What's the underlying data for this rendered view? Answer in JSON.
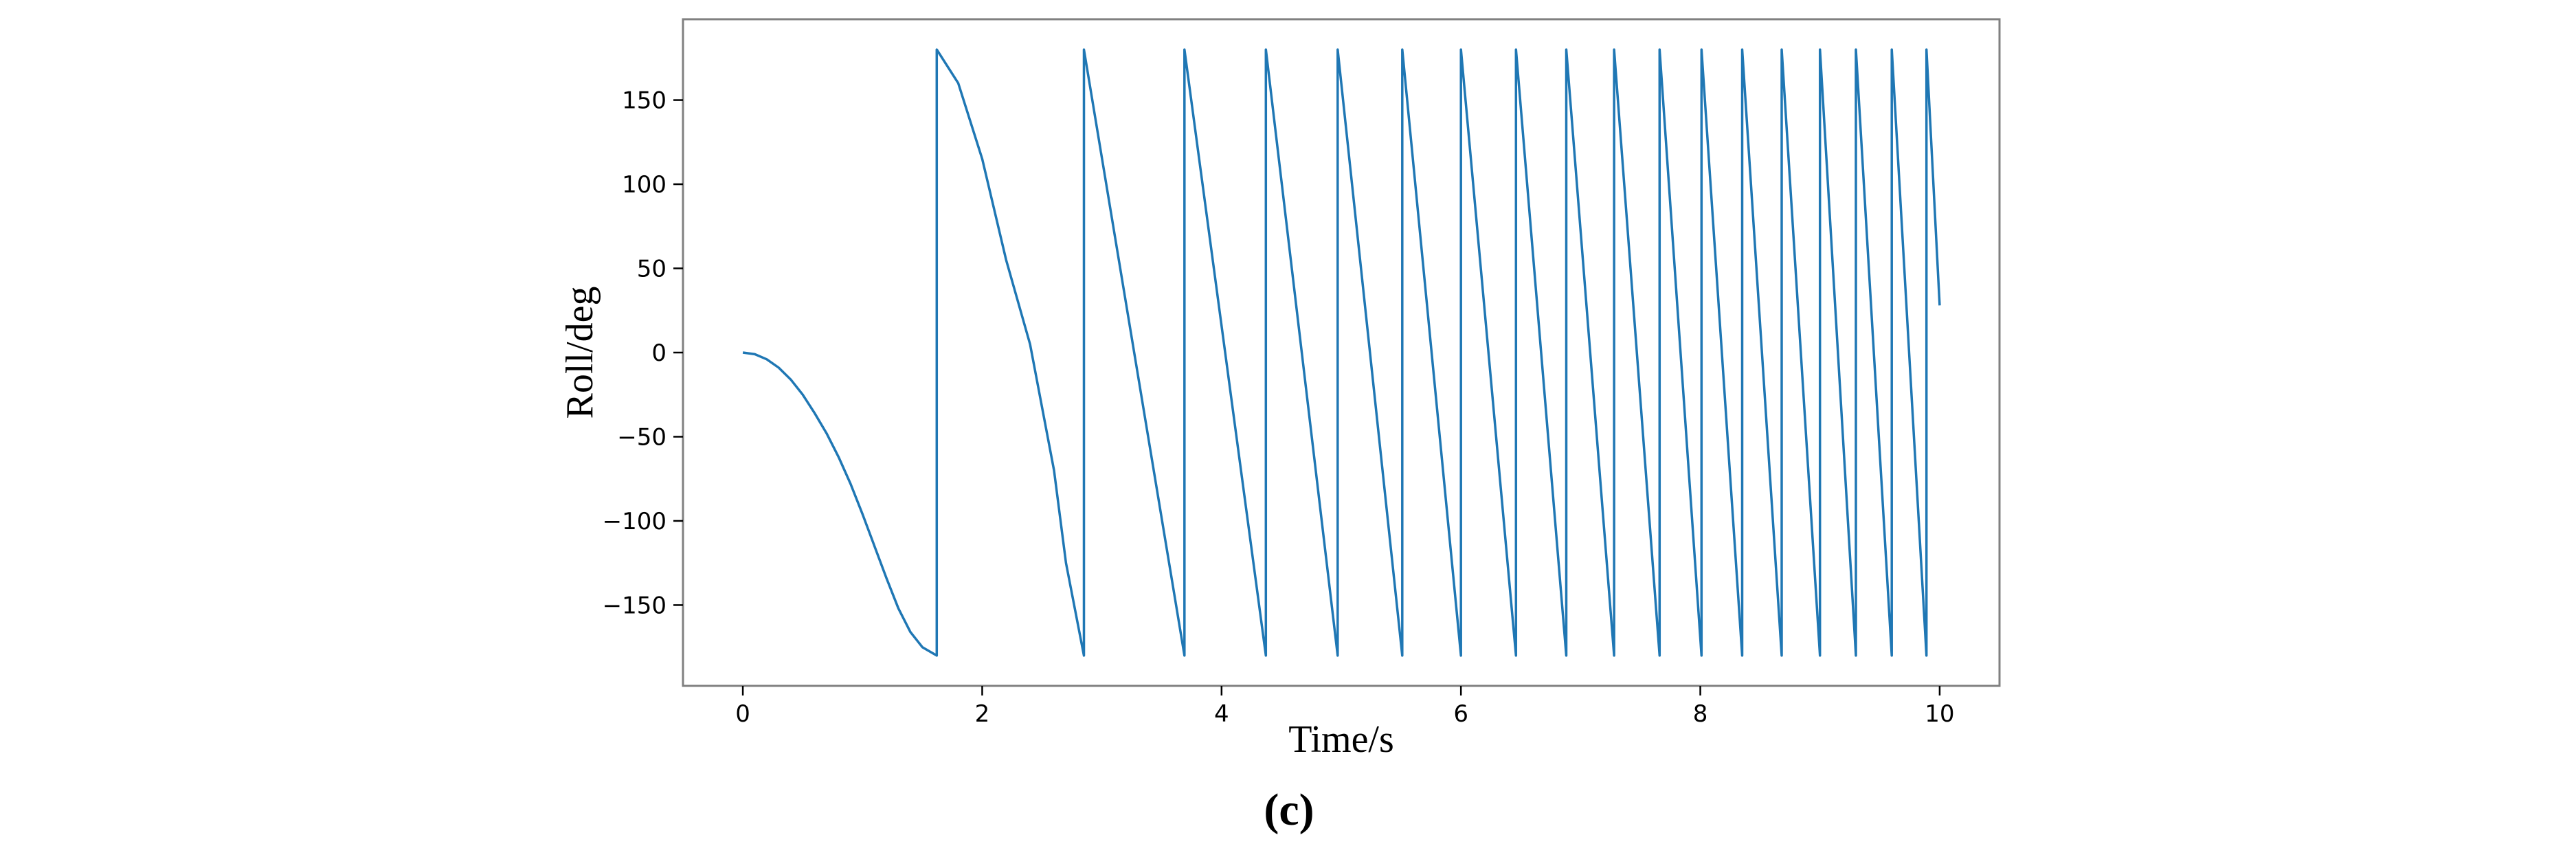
{
  "chart_data": {
    "type": "line",
    "title": "",
    "xlabel": "Time/s",
    "ylabel": "Roll/deg",
    "xlim": [
      -0.5,
      10.5
    ],
    "ylim": [
      -198,
      198
    ],
    "xticks": [
      0,
      2,
      4,
      6,
      8,
      10
    ],
    "yticks": [
      -150,
      -100,
      -50,
      0,
      50,
      100,
      150
    ],
    "xtick_labels": [
      "0",
      "2",
      "4",
      "6",
      "8",
      "10"
    ],
    "ytick_labels": [
      "−150",
      "−100",
      "−50",
      "0",
      "50",
      "100",
      "150"
    ],
    "grid": false,
    "legend": "none",
    "series": [
      {
        "color": "#1f77b4",
        "x": [
          0,
          0.1,
          0.2,
          0.3,
          0.4,
          0.5,
          0.6,
          0.7,
          0.8,
          0.9,
          1.0,
          1.1,
          1.2,
          1.3,
          1.4,
          1.5,
          1.62,
          1.62,
          1.8,
          2.0,
          2.2,
          2.4,
          2.6,
          2.7,
          2.85,
          2.85,
          3.69,
          3.69,
          4.37,
          4.37,
          4.97,
          4.97,
          5.51,
          5.51,
          6.0,
          6.0,
          6.46,
          6.46,
          6.88,
          6.88,
          7.28,
          7.28,
          7.66,
          7.66,
          8.01,
          8.01,
          8.35,
          8.35,
          8.68,
          8.68,
          9.0,
          9.0,
          9.3,
          9.3,
          9.6,
          9.6,
          9.89,
          9.89,
          10.0
        ],
        "y": [
          0,
          -1,
          -4,
          -9,
          -16,
          -25,
          -36,
          -48,
          -62,
          -78,
          -96,
          -115,
          -134,
          -152,
          -166,
          -175,
          -180,
          180,
          160,
          115,
          55,
          5,
          -70,
          -125,
          -180,
          180,
          -180,
          180,
          -180,
          180,
          -180,
          180,
          -180,
          180,
          -180,
          180,
          -180,
          180,
          -180,
          180,
          -180,
          180,
          -180,
          180,
          -180,
          180,
          -180,
          180,
          -180,
          180,
          -180,
          180,
          -180,
          180,
          -180,
          180,
          -180,
          180,
          28
        ]
      }
    ],
    "panel_label": "(c)"
  }
}
